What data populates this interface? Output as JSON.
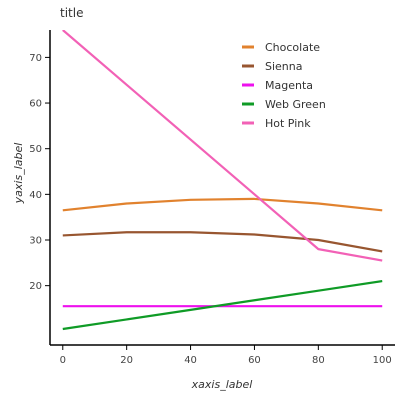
{
  "chart_data": {
    "type": "line",
    "title": "title",
    "xlabel": "xaxis_label",
    "ylabel": "yaxis_label",
    "x": [
      0,
      20,
      40,
      60,
      80,
      100
    ],
    "xlim": [
      -4,
      104
    ],
    "ylim": [
      7,
      76
    ],
    "xticks": [
      "0",
      "20",
      "40",
      "60",
      "80",
      "100"
    ],
    "yticks": [
      "20",
      "30",
      "40",
      "50",
      "60",
      "70"
    ],
    "ytick_values": [
      20,
      30,
      40,
      50,
      60,
      70
    ],
    "grid": false,
    "legend_position": "top-right",
    "series": [
      {
        "name": "Chocolate",
        "color": "#e1822e",
        "values": [
          36.5,
          38,
          38.8,
          39,
          38,
          36.5
        ]
      },
      {
        "name": "Sienna",
        "color": "#985630",
        "values": [
          31,
          31.7,
          31.7,
          31.2,
          30,
          27.5
        ]
      },
      {
        "name": "Magenta",
        "color": "#ee10ee",
        "values": [
          15.5,
          15.5,
          15.5,
          15.5,
          15.5,
          15.5
        ]
      },
      {
        "name": "Web Green",
        "color": "#0f9b26",
        "values": [
          10.5,
          12.6,
          14.7,
          16.8,
          18.9,
          21
        ]
      },
      {
        "name": "Hot Pink",
        "color": "#f261b6",
        "values": [
          76,
          64,
          52,
          40,
          28,
          25.5
        ]
      }
    ]
  }
}
